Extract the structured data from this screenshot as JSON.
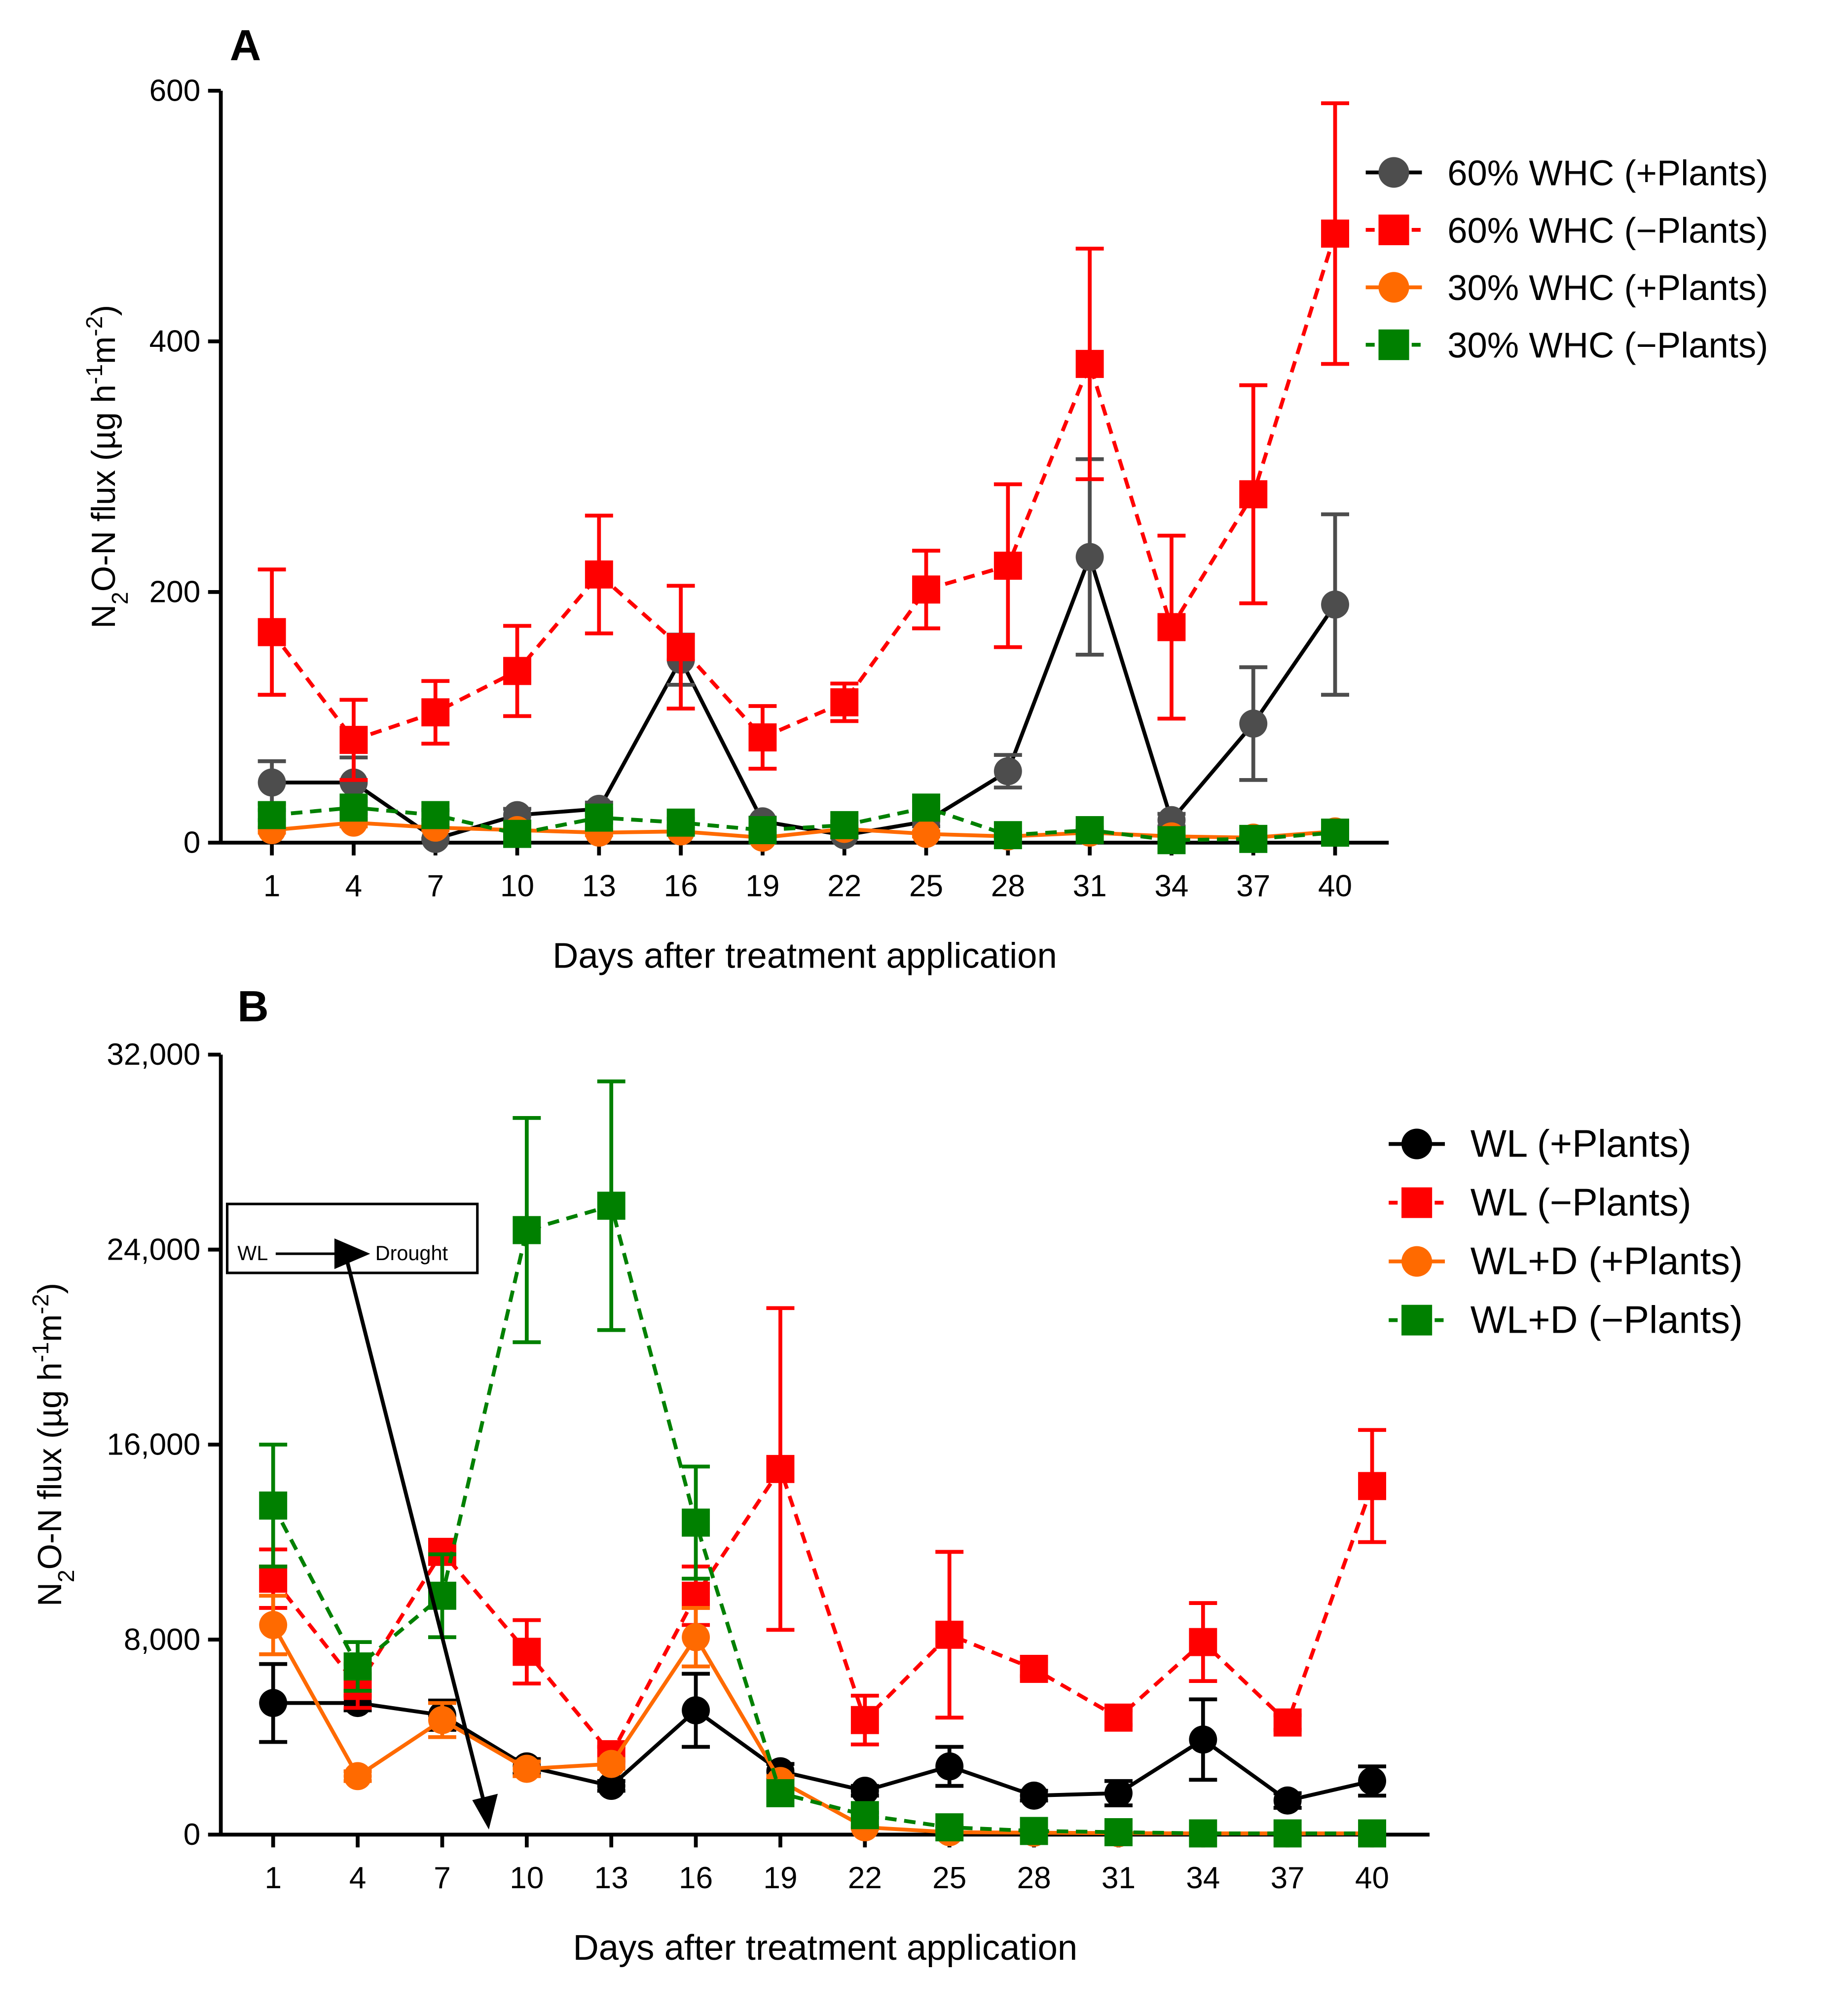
{
  "chart_data": [
    {
      "panel": "A",
      "type": "line",
      "xlabel": "Days after treatment application",
      "ylabel_parts": [
        {
          "t": "N"
        },
        {
          "t": "2",
          "sub": true
        },
        {
          "t": "O-N flux (µg h"
        },
        {
          "t": "-1",
          "sup": true
        },
        {
          "t": "m"
        },
        {
          "t": "-2",
          "sup": true
        },
        {
          "t": ")"
        }
      ],
      "ylim": [
        0,
        600
      ],
      "yticks": [
        0,
        200,
        400,
        600
      ],
      "ytick_labels": [
        "0",
        "200",
        "400",
        "600"
      ],
      "x": [
        1,
        4,
        7,
        10,
        13,
        16,
        19,
        22,
        25,
        28,
        31,
        34,
        37,
        40
      ],
      "legend_position": "top-right",
      "series": [
        {
          "name": "60% WHC (+Plants)",
          "color": "#4d4d4d",
          "line_color": "#000000",
          "marker": "circle",
          "dashed": false,
          "values": [
            48,
            48,
            3,
            22,
            27,
            146,
            17,
            6,
            17,
            57,
            228,
            18,
            95,
            190
          ],
          "errors": [
            17,
            20,
            0,
            5,
            5,
            20,
            3,
            2,
            4,
            13,
            78,
            5,
            45,
            72
          ]
        },
        {
          "name": "60% WHC (−Plants)",
          "color": "#ff0000",
          "line_color": "#ff0000",
          "marker": "square",
          "dashed": true,
          "values": [
            168,
            82,
            104,
            137,
            214,
            156,
            84,
            112,
            202,
            221,
            382,
            172,
            278,
            486
          ],
          "errors": [
            50,
            32,
            25,
            36,
            47,
            49,
            25,
            15,
            31,
            65,
            92,
            73,
            87,
            104
          ]
        },
        {
          "name": "30% WHC (+Plants)",
          "color": "#ff6a00",
          "line_color": "#ff6a00",
          "marker": "circle",
          "dashed": false,
          "values": [
            10,
            16,
            12,
            10,
            8,
            9,
            4,
            11,
            7,
            5,
            8,
            5,
            4,
            9
          ],
          "errors": [
            2,
            3,
            2,
            2,
            2,
            2,
            1,
            2,
            2,
            1,
            2,
            1,
            1,
            2
          ]
        },
        {
          "name": "30% WHC (−Plants)",
          "color": "#008000",
          "line_color": "#008000",
          "marker": "square",
          "dashed": true,
          "values": [
            22,
            28,
            22,
            7,
            20,
            16,
            10,
            14,
            28,
            6,
            10,
            2,
            3,
            8
          ],
          "errors": [
            4,
            5,
            4,
            2,
            4,
            3,
            2,
            3,
            5,
            2,
            2,
            1,
            1,
            2
          ]
        }
      ]
    },
    {
      "panel": "B",
      "type": "line",
      "xlabel": "Days after treatment application",
      "ylabel_parts": [
        {
          "t": "N"
        },
        {
          "t": "2",
          "sub": true
        },
        {
          "t": "O-N flux (µg h"
        },
        {
          "t": "-1",
          "sup": true
        },
        {
          "t": "m"
        },
        {
          "t": "-2",
          "sup": true
        },
        {
          "t": ")"
        }
      ],
      "ylim": [
        0,
        32000
      ],
      "yticks": [
        0,
        8000,
        16000,
        24000,
        32000
      ],
      "ytick_labels": [
        "0",
        "8,000",
        "16,000",
        "24,000",
        "32,000"
      ],
      "x": [
        1,
        4,
        7,
        10,
        13,
        16,
        19,
        22,
        25,
        28,
        31,
        34,
        37,
        40
      ],
      "legend_position": "top-right",
      "annotation": {
        "from_label": "WL",
        "to_label": "Drought"
      },
      "series": [
        {
          "name": "WL (+Plants)",
          "color": "#000000",
          "line_color": "#000000",
          "marker": "circle",
          "dashed": false,
          "values": [
            5400,
            5400,
            4900,
            2800,
            2000,
            5100,
            2600,
            1800,
            2800,
            1600,
            1700,
            3900,
            1400,
            2200
          ],
          "errors": [
            1600,
            300,
            600,
            300,
            200,
            1500,
            300,
            200,
            800,
            200,
            500,
            1650,
            300,
            600
          ]
        },
        {
          "name": "WL (−Plants)",
          "color": "#ff0000",
          "line_color": "#ff0000",
          "marker": "square",
          "dashed": true,
          "values": [
            10500,
            6100,
            11600,
            7500,
            3300,
            9800,
            15000,
            4700,
            8200,
            6800,
            4800,
            7900,
            4600,
            14300
          ],
          "errors": [
            1200,
            900,
            400,
            1300,
            300,
            1200,
            6600,
            1000,
            3400,
            300,
            300,
            1600,
            300,
            2300
          ]
        },
        {
          "name": "WL+D (+Plants)",
          "color": "#ff6a00",
          "line_color": "#ff6a00",
          "marker": "circle",
          "dashed": false,
          "values": [
            8600,
            2400,
            4700,
            2700,
            2900,
            8100,
            2200,
            300,
            100,
            80,
            60,
            50,
            50,
            50
          ],
          "errors": [
            1200,
            200,
            700,
            300,
            200,
            1200,
            200,
            50,
            30,
            20,
            20,
            20,
            20,
            20
          ]
        },
        {
          "name": "WL+D (−Plants)",
          "color": "#008000",
          "line_color": "#008000",
          "marker": "square",
          "dashed": true,
          "values": [
            13500,
            6900,
            9800,
            24800,
            25800,
            12800,
            1700,
            800,
            300,
            150,
            100,
            50,
            50,
            50
          ],
          "errors": [
            2500,
            1000,
            1700,
            4600,
            5100,
            2300,
            200,
            100,
            50,
            30,
            20,
            20,
            20,
            20
          ]
        }
      ]
    }
  ]
}
